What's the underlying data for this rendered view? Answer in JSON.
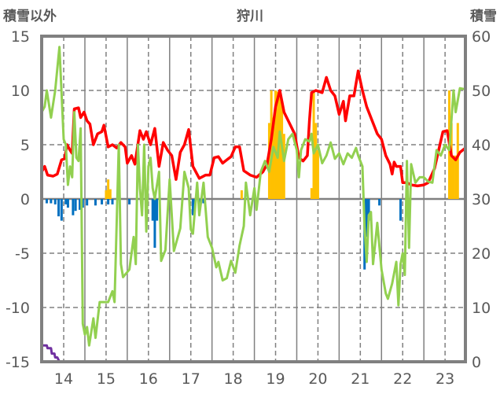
{
  "chart_data": {
    "type": "line",
    "title": "狩川",
    "ylabel_left": "積雪以外",
    "ylabel_right": "積雪",
    "ylim_left": [
      -15,
      15
    ],
    "ylim_right": [
      0,
      60
    ],
    "xlim": [
      13.48,
      23.48
    ],
    "left_ticks": [
      "15",
      "10",
      "5",
      "0",
      "-5",
      "-10",
      "-15"
    ],
    "right_ticks": [
      "60",
      "50",
      "40",
      "30",
      "20",
      "10",
      "0"
    ],
    "x_ticks": [
      "14",
      "15",
      "16",
      "17",
      "18",
      "19",
      "20",
      "21",
      "22",
      "23"
    ],
    "grid": "on",
    "colors": {
      "red": "#ff0000",
      "green": "#92d050",
      "orange": "#ffc000",
      "blue": "#0070c0",
      "purple": "#7030a0",
      "frame": "#808080"
    },
    "series": [
      {
        "name": "red",
        "axis": "left",
        "kind": "line",
        "color": "#ff0000",
        "points": [
          [
            13.48,
            2.5
          ],
          [
            13.55,
            3
          ],
          [
            13.62,
            2.2
          ],
          [
            13.75,
            2.1
          ],
          [
            13.85,
            2.3
          ],
          [
            13.95,
            3.6
          ],
          [
            14.02,
            3.7
          ],
          [
            14.08,
            5
          ],
          [
            14.15,
            4.5
          ],
          [
            14.2,
            4.2
          ],
          [
            14.25,
            8.3
          ],
          [
            14.35,
            8.4
          ],
          [
            14.4,
            7.5
          ],
          [
            14.48,
            8
          ],
          [
            14.55,
            7.2
          ],
          [
            14.62,
            6.9
          ],
          [
            14.7,
            5
          ],
          [
            14.8,
            6
          ],
          [
            14.9,
            6.2
          ],
          [
            14.95,
            6.8
          ],
          [
            15.05,
            4.8
          ],
          [
            15.15,
            5
          ],
          [
            15.25,
            4.7
          ],
          [
            15.35,
            5.2
          ],
          [
            15.45,
            4.8
          ],
          [
            15.5,
            3.3
          ],
          [
            15.6,
            4
          ],
          [
            15.68,
            3.2
          ],
          [
            15.8,
            6.3
          ],
          [
            15.88,
            5.5
          ],
          [
            15.95,
            6.2
          ],
          [
            16.05,
            5
          ],
          [
            16.15,
            6.5
          ],
          [
            16.25,
            3
          ],
          [
            16.35,
            5.2
          ],
          [
            16.45,
            4.5
          ],
          [
            16.55,
            4
          ],
          [
            16.65,
            1.8
          ],
          [
            16.75,
            4.3
          ],
          [
            16.85,
            5
          ],
          [
            16.95,
            6.4
          ],
          [
            17.05,
            3
          ],
          [
            17.2,
            1.9
          ],
          [
            17.35,
            2.2
          ],
          [
            17.45,
            2.2
          ],
          [
            17.55,
            3.8
          ],
          [
            17.65,
            3.9
          ],
          [
            17.75,
            3.3
          ],
          [
            17.85,
            3.6
          ],
          [
            17.95,
            3.9
          ],
          [
            18.05,
            4.8
          ],
          [
            18.15,
            4.8
          ],
          [
            18.25,
            2.6
          ],
          [
            18.4,
            2.2
          ],
          [
            18.55,
            2
          ],
          [
            18.7,
            2.5
          ],
          [
            18.8,
            3.2
          ],
          [
            18.9,
            5.5
          ],
          [
            19.0,
            8.5
          ],
          [
            19.1,
            10
          ],
          [
            19.2,
            8
          ],
          [
            19.3,
            7.2
          ],
          [
            19.45,
            6
          ],
          [
            19.55,
            3.8
          ],
          [
            19.65,
            3.5
          ],
          [
            19.75,
            4
          ],
          [
            19.8,
            7.2
          ],
          [
            19.85,
            9.8
          ],
          [
            19.95,
            10
          ],
          [
            20.1,
            9.8
          ],
          [
            20.2,
            11.2
          ],
          [
            20.3,
            10
          ],
          [
            20.4,
            9.5
          ],
          [
            20.5,
            7.8
          ],
          [
            20.6,
            9
          ],
          [
            20.65,
            7.2
          ],
          [
            20.75,
            9.5
          ],
          [
            20.85,
            9.5
          ],
          [
            20.95,
            11.8
          ],
          [
            21.05,
            10
          ],
          [
            21.15,
            8.5
          ],
          [
            21.3,
            7
          ],
          [
            21.4,
            6
          ],
          [
            21.5,
            5.5
          ],
          [
            21.6,
            4
          ],
          [
            21.7,
            3.2
          ],
          [
            21.75,
            2.3
          ],
          [
            21.8,
            3.4
          ],
          [
            21.85,
            3
          ],
          [
            21.95,
            3
          ],
          [
            22.0,
            1.5
          ],
          [
            22.1,
            1.5
          ],
          [
            22.2,
            1.3
          ],
          [
            22.35,
            1.2
          ],
          [
            22.5,
            1.3
          ],
          [
            22.6,
            1.5
          ],
          [
            22.75,
            2.8
          ],
          [
            22.85,
            4.5
          ],
          [
            22.95,
            6.2
          ],
          [
            23.05,
            6.3
          ],
          [
            23.15,
            4
          ],
          [
            23.25,
            3.6
          ],
          [
            23.35,
            4.3
          ],
          [
            23.48,
            4.7
          ]
        ]
      },
      {
        "name": "green",
        "axis": "left",
        "kind": "line",
        "color": "#92d050",
        "points": [
          [
            13.48,
            8
          ],
          [
            13.55,
            8.5
          ],
          [
            13.6,
            10
          ],
          [
            13.7,
            7.5
          ],
          [
            13.8,
            10
          ],
          [
            13.9,
            14
          ],
          [
            14.0,
            5.5
          ],
          [
            14.05,
            5
          ],
          [
            14.1,
            1.3
          ],
          [
            14.15,
            3
          ],
          [
            14.2,
            2
          ],
          [
            14.25,
            8
          ],
          [
            14.3,
            3.8
          ],
          [
            14.35,
            3.5
          ],
          [
            14.4,
            6.5
          ],
          [
            14.45,
            -11.5
          ],
          [
            14.5,
            -12.5
          ],
          [
            14.55,
            -11.8
          ],
          [
            14.6,
            -13.5
          ],
          [
            14.7,
            -11
          ],
          [
            14.75,
            -12.8
          ],
          [
            14.85,
            -9.5
          ],
          [
            14.95,
            -9.5
          ],
          [
            15.05,
            -9.5
          ],
          [
            15.15,
            -8.5
          ],
          [
            15.2,
            -9.5
          ],
          [
            15.3,
            5
          ],
          [
            15.35,
            -6
          ],
          [
            15.4,
            -7.2
          ],
          [
            15.55,
            -6.5
          ],
          [
            15.65,
            -3.5
          ],
          [
            15.7,
            -6
          ],
          [
            15.75,
            5
          ],
          [
            15.8,
            1
          ],
          [
            15.85,
            -1.5
          ],
          [
            15.9,
            5
          ],
          [
            15.95,
            -3
          ],
          [
            16.0,
            3
          ],
          [
            16.05,
            3.8
          ],
          [
            16.1,
            1
          ],
          [
            16.15,
            0
          ],
          [
            16.25,
            2.5
          ],
          [
            16.3,
            -5.7
          ],
          [
            16.4,
            -4.7
          ],
          [
            16.5,
            1.8
          ],
          [
            16.6,
            -4.8
          ],
          [
            16.75,
            -2.7
          ],
          [
            16.85,
            2.5
          ],
          [
            16.95,
            1
          ],
          [
            17.0,
            -2.8
          ],
          [
            17.05,
            -3.2
          ],
          [
            17.15,
            1.5
          ],
          [
            17.2,
            -1.5
          ],
          [
            17.3,
            1.5
          ],
          [
            17.4,
            -3.5
          ],
          [
            17.5,
            -4.5
          ],
          [
            17.6,
            -6.3
          ],
          [
            17.65,
            -5.8
          ],
          [
            17.75,
            -7.5
          ],
          [
            17.85,
            -7.3
          ],
          [
            17.95,
            -5.7
          ],
          [
            18.05,
            -6.8
          ],
          [
            18.15,
            -4.3
          ],
          [
            18.25,
            -2.5
          ],
          [
            18.3,
            1.5
          ],
          [
            18.4,
            -1.5
          ],
          [
            18.5,
            1
          ],
          [
            18.55,
            -1
          ],
          [
            18.65,
            2.5
          ],
          [
            18.75,
            3.5
          ],
          [
            18.85,
            2.5
          ],
          [
            18.95,
            4.8
          ],
          [
            19.05,
            3.8
          ],
          [
            19.1,
            6.2
          ],
          [
            19.2,
            3.5
          ],
          [
            19.3,
            5.5
          ],
          [
            19.4,
            6
          ],
          [
            19.5,
            4.5
          ],
          [
            19.55,
            2
          ],
          [
            19.6,
            4.5
          ],
          [
            19.7,
            5.5
          ],
          [
            19.8,
            5.3
          ],
          [
            19.85,
            6
          ],
          [
            19.9,
            4.2
          ],
          [
            20.0,
            5
          ],
          [
            20.1,
            3.3
          ],
          [
            20.2,
            4
          ],
          [
            20.3,
            5.2
          ],
          [
            20.4,
            3.7
          ],
          [
            20.5,
            4.2
          ],
          [
            20.6,
            3.2
          ],
          [
            20.7,
            4.2
          ],
          [
            20.8,
            3.8
          ],
          [
            20.9,
            4.7
          ],
          [
            20.95,
            4
          ],
          [
            21.05,
            3
          ],
          [
            21.1,
            -2.5
          ],
          [
            21.15,
            -5.8
          ],
          [
            21.2,
            -1.5
          ],
          [
            21.25,
            -1.2
          ],
          [
            21.3,
            -6
          ],
          [
            21.4,
            -2.2
          ],
          [
            21.5,
            -6.5
          ],
          [
            21.6,
            -8.7
          ],
          [
            21.65,
            -9.2
          ],
          [
            21.75,
            -7.8
          ],
          [
            21.85,
            -5.8
          ],
          [
            21.9,
            -9.8
          ],
          [
            21.95,
            -6
          ],
          [
            22.0,
            -5
          ],
          [
            22.05,
            -7
          ],
          [
            22.1,
            3.5
          ],
          [
            22.15,
            -4.5
          ],
          [
            22.2,
            3.2
          ],
          [
            22.3,
            1.5
          ],
          [
            22.4,
            2
          ],
          [
            22.5,
            2
          ],
          [
            22.6,
            1.6
          ],
          [
            22.7,
            1.5
          ],
          [
            22.8,
            4.5
          ],
          [
            22.9,
            4
          ],
          [
            23.0,
            5
          ],
          [
            23.1,
            4.5
          ],
          [
            23.2,
            10
          ],
          [
            23.25,
            8
          ],
          [
            23.35,
            10.2
          ],
          [
            23.48,
            10.1
          ]
        ]
      },
      {
        "name": "purple",
        "axis": "right",
        "kind": "step",
        "color": "#7030a0",
        "points": [
          [
            13.48,
            3
          ],
          [
            13.6,
            3
          ],
          [
            13.62,
            2.5
          ],
          [
            13.7,
            2.5
          ],
          [
            13.72,
            1.5
          ],
          [
            13.78,
            1.5
          ],
          [
            13.8,
            0.8
          ],
          [
            13.85,
            0.8
          ],
          [
            13.9,
            0
          ],
          [
            23.48,
            0
          ]
        ]
      },
      {
        "name": "orange",
        "axis": "left",
        "kind": "bar",
        "color": "#ffc000",
        "points": [
          [
            15.0,
            0.8
          ],
          [
            15.05,
            1.8
          ],
          [
            15.1,
            0.9
          ],
          [
            18.2,
            0.8
          ],
          [
            18.85,
            7
          ],
          [
            18.9,
            10
          ],
          [
            18.95,
            7.5
          ],
          [
            19.0,
            10
          ],
          [
            19.05,
            9.9
          ],
          [
            19.1,
            10
          ],
          [
            19.15,
            9
          ],
          [
            19.2,
            6
          ],
          [
            19.85,
            1
          ],
          [
            19.9,
            10
          ],
          [
            19.95,
            7
          ],
          [
            20.0,
            4.5
          ],
          [
            23.1,
            10
          ],
          [
            23.15,
            7
          ],
          [
            23.2,
            4
          ],
          [
            23.25,
            4
          ],
          [
            23.3,
            7
          ]
        ]
      },
      {
        "name": "blue",
        "axis": "left",
        "kind": "bar",
        "color": "#0070c0",
        "points": [
          [
            13.6,
            -0.4
          ],
          [
            13.7,
            -0.4
          ],
          [
            13.8,
            -0.5
          ],
          [
            13.88,
            -1.6
          ],
          [
            13.95,
            -2
          ],
          [
            14.05,
            -0.5
          ],
          [
            14.1,
            -0.8
          ],
          [
            14.22,
            -1.5
          ],
          [
            14.28,
            -1.1
          ],
          [
            14.38,
            -1
          ],
          [
            14.45,
            -0.8
          ],
          [
            14.55,
            -0.6
          ],
          [
            14.75,
            -0.6
          ],
          [
            14.9,
            -0.5
          ],
          [
            15.05,
            -0.5
          ],
          [
            15.15,
            -0.5
          ],
          [
            15.55,
            -0.5
          ],
          [
            15.95,
            -0.4
          ],
          [
            16.1,
            -2
          ],
          [
            16.15,
            -4.5
          ],
          [
            16.2,
            -2
          ],
          [
            17.05,
            -1.5
          ],
          [
            17.1,
            -0.5
          ],
          [
            17.2,
            -0.5
          ],
          [
            17.3,
            -0.4
          ],
          [
            21.1,
            -6.5
          ],
          [
            21.15,
            -3.5
          ],
          [
            21.2,
            -2
          ],
          [
            21.45,
            -0.6
          ],
          [
            21.95,
            -2
          ]
        ]
      }
    ]
  }
}
